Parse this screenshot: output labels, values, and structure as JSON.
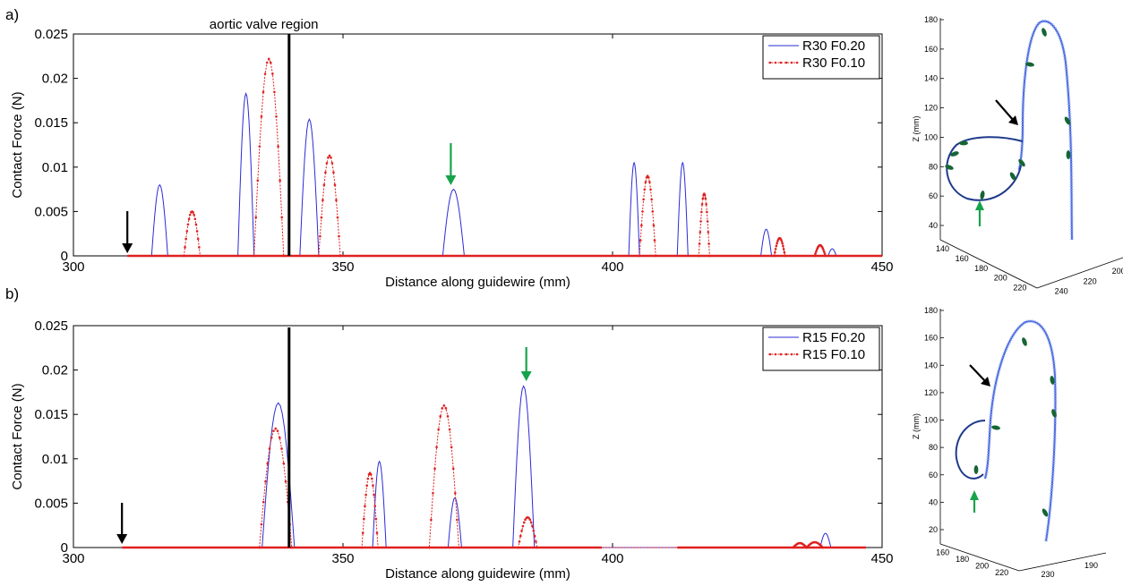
{
  "figure": {
    "panel_labels": [
      "a)",
      "b)"
    ],
    "annotation": "aortic valve region",
    "colors": {
      "series1": "#2b2bd6",
      "series2": "#e02020",
      "marker_black": "#000000",
      "marker_green": "#16a34a",
      "curve3d": "#3b5bdb",
      "arrow3d": "#166534"
    }
  },
  "chart_data": [
    {
      "type": "line",
      "panel": "a)",
      "title": "",
      "xlabel": "Distance along guidewire (mm)",
      "ylabel": "Contact Force (N)",
      "xlim": [
        300,
        450
      ],
      "ylim": [
        0,
        0.025
      ],
      "xticks": [
        "300",
        "350",
        "400",
        "450"
      ],
      "yticks": [
        "0",
        "0.005",
        "0.01",
        "0.015",
        "0.02",
        "0.025"
      ],
      "legend_position": "top-right",
      "annotation_line_x": 340,
      "black_arrow_x": 310,
      "green_arrow_x": 370,
      "series": [
        {
          "name": "R30 F0.20",
          "style": "solid",
          "range": [
            310,
            450
          ],
          "peaks": [
            [
              314.5,
              317.5,
              0.008
            ],
            [
              330.5,
              333.5,
              0.0183
            ],
            [
              342,
              345.5,
              0.0154
            ],
            [
              368.5,
              372.5,
              0.0075
            ],
            [
              403,
              405,
              0.0105
            ],
            [
              412,
              414,
              0.0105
            ],
            [
              427.5,
              429.5,
              0.003
            ],
            [
              440,
              441.5,
              0.0008
            ]
          ]
        },
        {
          "name": "R30 F0.10",
          "style": "dotted-marker",
          "range": [
            310,
            450
          ],
          "peaks": [
            [
              320.5,
              323.5,
              0.005
            ],
            [
              333.5,
              339,
              0.0222
            ],
            [
              345.5,
              349.5,
              0.0113
            ],
            [
              405,
              408,
              0.009
            ],
            [
              416,
              418,
              0.007
            ],
            [
              430,
              432,
              0.002
            ],
            [
              437.5,
              439.5,
              0.0012
            ]
          ]
        }
      ]
    },
    {
      "type": "line",
      "panel": "b)",
      "title": "",
      "xlabel": "Distance along guidewire (mm)",
      "ylabel": "Contact Force (N)",
      "xlim": [
        300,
        450
      ],
      "ylim": [
        0,
        0.025
      ],
      "xticks": [
        "300",
        "350",
        "400",
        "450"
      ],
      "yticks": [
        "0",
        "0.005",
        "0.01",
        "0.015",
        "0.02",
        "0.025"
      ],
      "legend_position": "top-right",
      "annotation_line_x": 340,
      "black_arrow_x": 309,
      "green_arrow_x": 384,
      "series": [
        {
          "name": "R15 F0.20",
          "style": "solid",
          "range": [
            309,
            447
          ],
          "peaks": [
            [
              335,
              341,
              0.0163
            ],
            [
              355.5,
              358,
              0.0097
            ],
            [
              369.5,
              372,
              0.0056
            ],
            [
              381.5,
              385.5,
              0.0182
            ],
            [
              438.5,
              440.5,
              0.0016
            ]
          ]
        },
        {
          "name": "R15 F0.10",
          "style": "dotted-marker",
          "range": [
            309,
            447
          ],
          "gap": [
            398,
            412
          ],
          "peaks": [
            [
              334.5,
              340.5,
              0.0134
            ],
            [
              353.5,
              356.5,
              0.0084
            ],
            [
              366,
              371.5,
              0.016
            ],
            [
              382.5,
              386,
              0.0034
            ],
            [
              433.5,
              436,
              0.0005
            ],
            [
              436,
              439,
              0.0006
            ]
          ]
        }
      ]
    },
    {
      "type": "line3d",
      "zlabel": "Z (mm)",
      "zticks": [
        "180",
        "160",
        "140",
        "120",
        "100",
        "80",
        "60",
        "40"
      ],
      "xticks": [
        "140",
        "160",
        "180",
        "200",
        "220"
      ],
      "yticks": [
        "240",
        "220",
        "200"
      ]
    },
    {
      "type": "line3d",
      "zlabel": "Z (mm)",
      "zticks": [
        "180",
        "160",
        "140",
        "120",
        "100",
        "80",
        "60",
        "40",
        "20"
      ],
      "xticks": [
        "160",
        "180",
        "200",
        "220"
      ],
      "yticks": [
        "230",
        "190"
      ]
    }
  ]
}
